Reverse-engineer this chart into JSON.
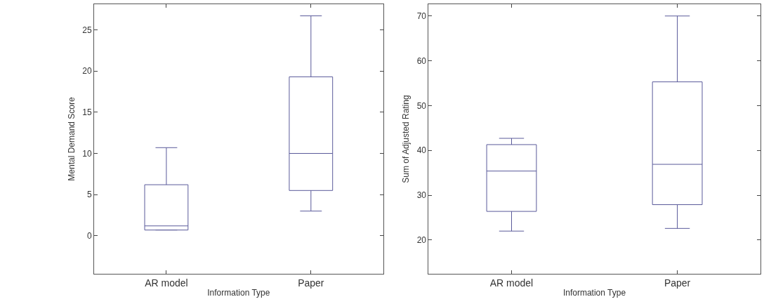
{
  "chart_data": [
    {
      "type": "box",
      "xlabel": "Information Type",
      "ylabel": "Mental Demand Score",
      "categories": [
        "AR model",
        "Paper"
      ],
      "color": "#5a5a9a",
      "ylim": [
        -4.6,
        28.1
      ],
      "yticks": [
        0,
        5,
        10,
        15,
        20,
        25
      ],
      "boxes": [
        {
          "low": 0.7,
          "q1": 0.7,
          "median": 1.2,
          "q3": 6.2,
          "high": 10.7
        },
        {
          "low": 3.0,
          "q1": 5.5,
          "median": 10.0,
          "q3": 19.3,
          "high": 26.7
        }
      ]
    },
    {
      "type": "box",
      "xlabel": "Information Type",
      "ylabel": "Sum of Adjusted Rating",
      "categories": [
        "AR model",
        "Paper"
      ],
      "color": "#5a5a9a",
      "ylim": [
        12.5,
        72.6
      ],
      "yticks": [
        20,
        30,
        40,
        50,
        60,
        70
      ],
      "boxes": [
        {
          "low": 22.0,
          "q1": 26.4,
          "median": 35.4,
          "q3": 41.3,
          "high": 42.7
        },
        {
          "low": 22.6,
          "q1": 27.9,
          "median": 36.9,
          "q3": 55.3,
          "high": 70.0
        }
      ]
    }
  ]
}
